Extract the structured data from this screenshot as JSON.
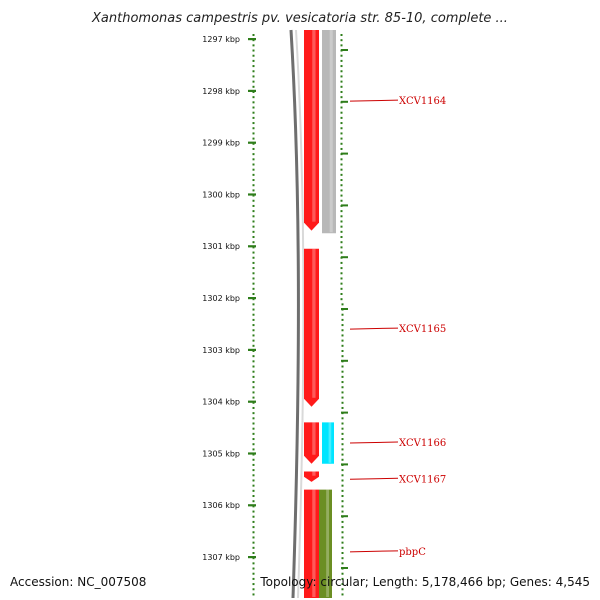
{
  "title": "Xanthomonas campestris pv. vesicatoria str. 85-10, complete ...",
  "footer": {
    "accession": "Accession: NC_007508",
    "summary": "Topology: circular; Length: 5,178,466 bp; Genes: 4,545"
  },
  "colors": {
    "background": "#ffffff",
    "ruler_tick": "#2e7d1a",
    "backbone": "#6e6e6e",
    "gene_red": "#ff1a1a",
    "gene_gray": "#b8b8b8",
    "gene_cyan": "#00e5ff",
    "gene_olive": "#6b8e23",
    "label_red": "#cc0000"
  },
  "chart_data": {
    "type": "genome-map",
    "axis_unit": "kbp",
    "axis_range_kbp": [
      1296.8,
      1307.6
    ],
    "ticks": [
      {
        "kbp": 1297,
        "label": "1297 kbp"
      },
      {
        "kbp": 1298,
        "label": "1298 kbp"
      },
      {
        "kbp": 1299,
        "label": "1299 kbp"
      },
      {
        "kbp": 1300,
        "label": "1300 kbp"
      },
      {
        "kbp": 1301,
        "label": "1301 kbp"
      },
      {
        "kbp": 1302,
        "label": "1302 kbp"
      },
      {
        "kbp": 1303,
        "label": "1303 kbp"
      },
      {
        "kbp": 1304,
        "label": "1304 kbp"
      },
      {
        "kbp": 1305,
        "label": "1305 kbp"
      },
      {
        "kbp": 1306,
        "label": "1306 kbp"
      },
      {
        "kbp": 1307,
        "label": "1307 kbp"
      }
    ],
    "features": [
      {
        "name": "XCV1164",
        "track": "red",
        "start_kbp": 1296.5,
        "end_kbp": 1300.7,
        "label_kbp": 1298.2
      },
      {
        "name": "",
        "track": "gray",
        "start_kbp": 1296.5,
        "end_kbp": 1300.75,
        "label_kbp": null
      },
      {
        "name": "XCV1165",
        "track": "red",
        "start_kbp": 1301.05,
        "end_kbp": 1304.1,
        "label_kbp": 1302.6
      },
      {
        "name": "XCV1166",
        "track": "red",
        "start_kbp": 1304.4,
        "end_kbp": 1305.2,
        "label_kbp": 1304.8
      },
      {
        "name": "",
        "track": "cyan",
        "start_kbp": 1304.4,
        "end_kbp": 1305.2,
        "label_kbp": null
      },
      {
        "name": "XCV1167",
        "track": "red",
        "start_kbp": 1305.35,
        "end_kbp": 1305.55,
        "label_kbp": 1305.5
      },
      {
        "name": "pbpC",
        "track": "red",
        "start_kbp": 1305.7,
        "end_kbp": 1307.8,
        "label_kbp": 1306.9
      },
      {
        "name": "",
        "track": "olive",
        "start_kbp": 1305.7,
        "end_kbp": 1307.8,
        "label_kbp": null
      }
    ]
  }
}
